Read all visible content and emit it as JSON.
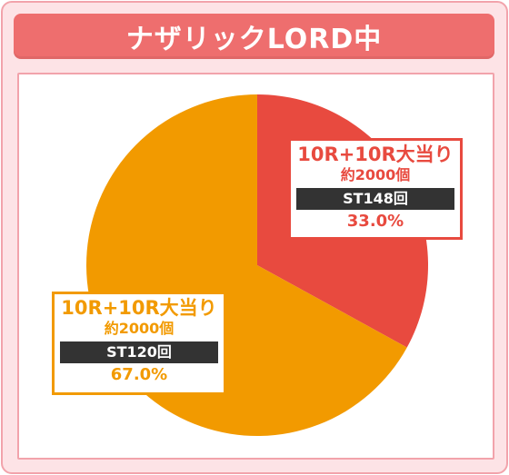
{
  "header": {
    "title": "ナザリックLORD中"
  },
  "colors": {
    "slice_red": "#e84a3f",
    "slice_orange": "#f29a00",
    "title_bg": "#ee6e6e",
    "frame_bg": "#fde3e6"
  },
  "chart_data": {
    "type": "pie",
    "title": "ナザリックLORD中",
    "slices": [
      {
        "label": "10R+10R大当り",
        "sub": "約2000個",
        "st": "ST148回",
        "value": 33.0,
        "value_label": "33.0%",
        "color": "#e84a3f"
      },
      {
        "label": "10R+10R大当り",
        "sub": "約2000個",
        "st": "ST120回",
        "value": 67.0,
        "value_label": "67.0%",
        "color": "#f29a00"
      }
    ]
  }
}
